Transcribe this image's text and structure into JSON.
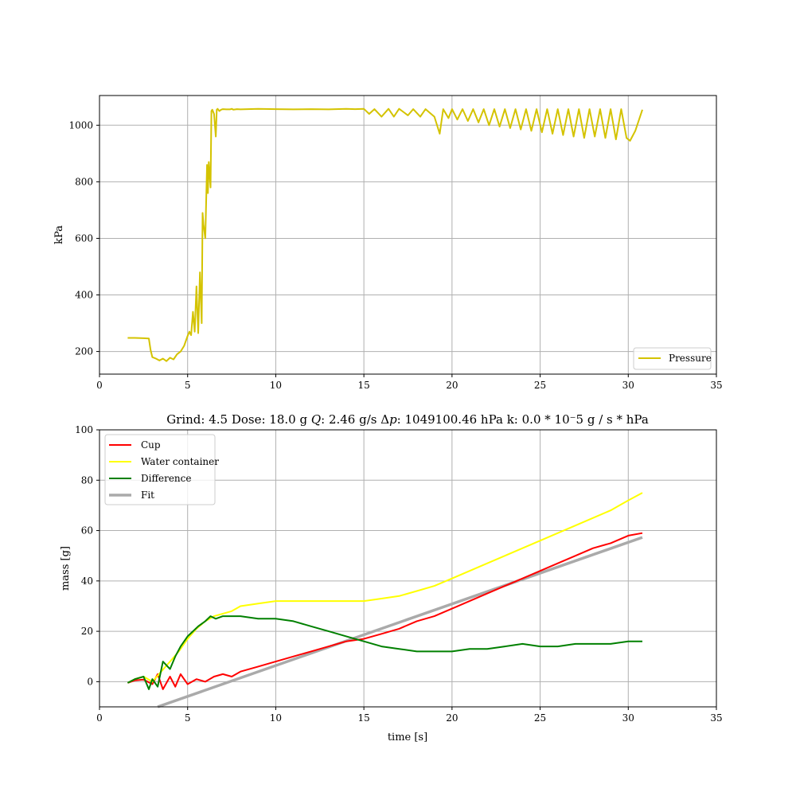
{
  "chart_data": [
    {
      "type": "line",
      "xlabel": "",
      "ylabel": "kPa",
      "xlim": [
        0,
        35
      ],
      "ylim": [
        120,
        1105
      ],
      "xticks": [
        0,
        5,
        10,
        15,
        20,
        25,
        30,
        35
      ],
      "yticks": [
        200,
        400,
        600,
        800,
        1000
      ],
      "grid": true,
      "legend_position": "bottom-right",
      "series": [
        {
          "name": "Pressure",
          "color": "#d4c300",
          "x": [
            1.6,
            2.0,
            2.5,
            2.8,
            2.9,
            3.0,
            3.2,
            3.4,
            3.6,
            3.8,
            4.0,
            4.2,
            4.4,
            4.6,
            4.8,
            5.0,
            5.1,
            5.2,
            5.3,
            5.4,
            5.5,
            5.6,
            5.7,
            5.8,
            5.85,
            5.9,
            6.0,
            6.1,
            6.15,
            6.2,
            6.3,
            6.35,
            6.4,
            6.5,
            6.6,
            6.65,
            6.7,
            6.8,
            6.9,
            7.0,
            7.2,
            7.4,
            7.5,
            7.6,
            7.8,
            8,
            9,
            10,
            11,
            12,
            13,
            14,
            14.5,
            15,
            15.3,
            15.6,
            16,
            16.4,
            16.7,
            17,
            17.5,
            17.8,
            18.2,
            18.5,
            19,
            19.3,
            19.5,
            19.8,
            20,
            20.3,
            20.6,
            20.9,
            21.2,
            21.5,
            21.8,
            22.1,
            22.4,
            22.7,
            23,
            23.3,
            23.6,
            23.9,
            24.2,
            24.5,
            24.8,
            25.1,
            25.4,
            25.7,
            26,
            26.3,
            26.6,
            26.9,
            27.2,
            27.5,
            27.8,
            28.1,
            28.4,
            28.7,
            29,
            29.3,
            29.6,
            29.9,
            30.1,
            30.4,
            30.8
          ],
          "y": [
            248,
            248,
            247,
            246,
            205,
            180,
            175,
            168,
            175,
            166,
            178,
            172,
            190,
            200,
            220,
            255,
            270,
            258,
            340,
            270,
            430,
            265,
            480,
            300,
            690,
            650,
            600,
            860,
            760,
            870,
            780,
            1050,
            1055,
            1040,
            960,
            1055,
            1058,
            1050,
            1055,
            1057,
            1056,
            1056,
            1058,
            1055,
            1057,
            1056,
            1058,
            1057,
            1056,
            1057,
            1056,
            1058,
            1057,
            1058,
            1040,
            1057,
            1030,
            1058,
            1030,
            1058,
            1035,
            1057,
            1030,
            1057,
            1030,
            970,
            1057,
            1025,
            1057,
            1020,
            1057,
            1015,
            1057,
            1010,
            1057,
            1000,
            1057,
            995,
            1057,
            990,
            1057,
            985,
            1057,
            980,
            1057,
            975,
            1057,
            970,
            1057,
            965,
            1057,
            960,
            1057,
            955,
            1057,
            960,
            1057,
            955,
            1057,
            950,
            1057,
            955,
            945,
            980,
            1055
          ]
        }
      ]
    },
    {
      "type": "line",
      "title": "Grind: 4.5      Dose: 18.0 g    𝑄: 2.46 g/s   Δ𝑝:  1049100.46 hPa      k: 0.0 * 10⁻5 g / s * hPa",
      "xlabel": "time [s]",
      "ylabel": "mass [g]",
      "xlim": [
        0,
        35
      ],
      "ylim": [
        -10,
        100
      ],
      "xticks": [
        0,
        5,
        10,
        15,
        20,
        25,
        30,
        35
      ],
      "yticks": [
        0,
        20,
        40,
        60,
        80,
        100
      ],
      "grid": true,
      "legend_position": "top-left",
      "series": [
        {
          "name": "Cup",
          "color": "#ff0000",
          "x": [
            1.6,
            2.0,
            2.5,
            3.0,
            3.3,
            3.6,
            4.0,
            4.3,
            4.6,
            5.0,
            5.5,
            6.0,
            6.5,
            7.0,
            7.5,
            8,
            9,
            10,
            11,
            12,
            13,
            14,
            15,
            16,
            17,
            18,
            19,
            20,
            21,
            22,
            23,
            24,
            25,
            26,
            27,
            28,
            29,
            30,
            30.8
          ],
          "y": [
            -0.5,
            0.5,
            0.8,
            -1,
            3,
            -3,
            2,
            -2,
            3,
            -1,
            1,
            0,
            2,
            3,
            2,
            4,
            6,
            8,
            10,
            12,
            14,
            16,
            17,
            19,
            21,
            24,
            26,
            29,
            32,
            35,
            38,
            41,
            44,
            47,
            50,
            53,
            55,
            58,
            59
          ]
        },
        {
          "name": "Water container",
          "color": "#ffff00",
          "x": [
            1.6,
            2.0,
            2.5,
            3.0,
            3.5,
            4.0,
            4.5,
            5.0,
            5.5,
            6.0,
            6.5,
            7.0,
            7.5,
            8,
            9,
            10,
            11,
            12,
            13,
            14,
            15,
            16,
            17,
            18,
            19,
            20,
            21,
            22,
            23,
            24,
            25,
            26,
            27,
            28,
            29,
            30,
            30.8
          ],
          "y": [
            -0.5,
            1,
            2,
            0,
            4,
            8,
            12,
            17,
            21,
            24,
            26,
            27,
            28,
            30,
            31,
            32,
            32,
            32,
            32,
            32,
            32,
            33,
            34,
            36,
            38,
            41,
            44,
            47,
            50,
            53,
            56,
            59,
            62,
            65,
            68,
            72,
            75
          ]
        },
        {
          "name": "Difference",
          "color": "#008000",
          "x": [
            1.6,
            2.0,
            2.5,
            2.8,
            3.0,
            3.3,
            3.6,
            4.0,
            4.3,
            4.6,
            5.0,
            5.3,
            5.6,
            6.0,
            6.3,
            6.6,
            7.0,
            7.5,
            8,
            9,
            10,
            11,
            12,
            13,
            14,
            15,
            16,
            17,
            18,
            19,
            20,
            21,
            22,
            23,
            24,
            25,
            26,
            27,
            28,
            29,
            30,
            30.8
          ],
          "y": [
            -0.5,
            1,
            2,
            -3,
            1,
            -2,
            8,
            5,
            10,
            14,
            18,
            20,
            22,
            24,
            26,
            25,
            26,
            26,
            26,
            25,
            25,
            24,
            22,
            20,
            18,
            16,
            14,
            13,
            12,
            12,
            12,
            13,
            13,
            14,
            15,
            14,
            14,
            15,
            15,
            15,
            16,
            16
          ]
        },
        {
          "name": "Fit",
          "color": "#aaaaaa",
          "x": [
            3.3,
            30.8
          ],
          "y": [
            -10,
            57.3
          ]
        }
      ]
    }
  ]
}
